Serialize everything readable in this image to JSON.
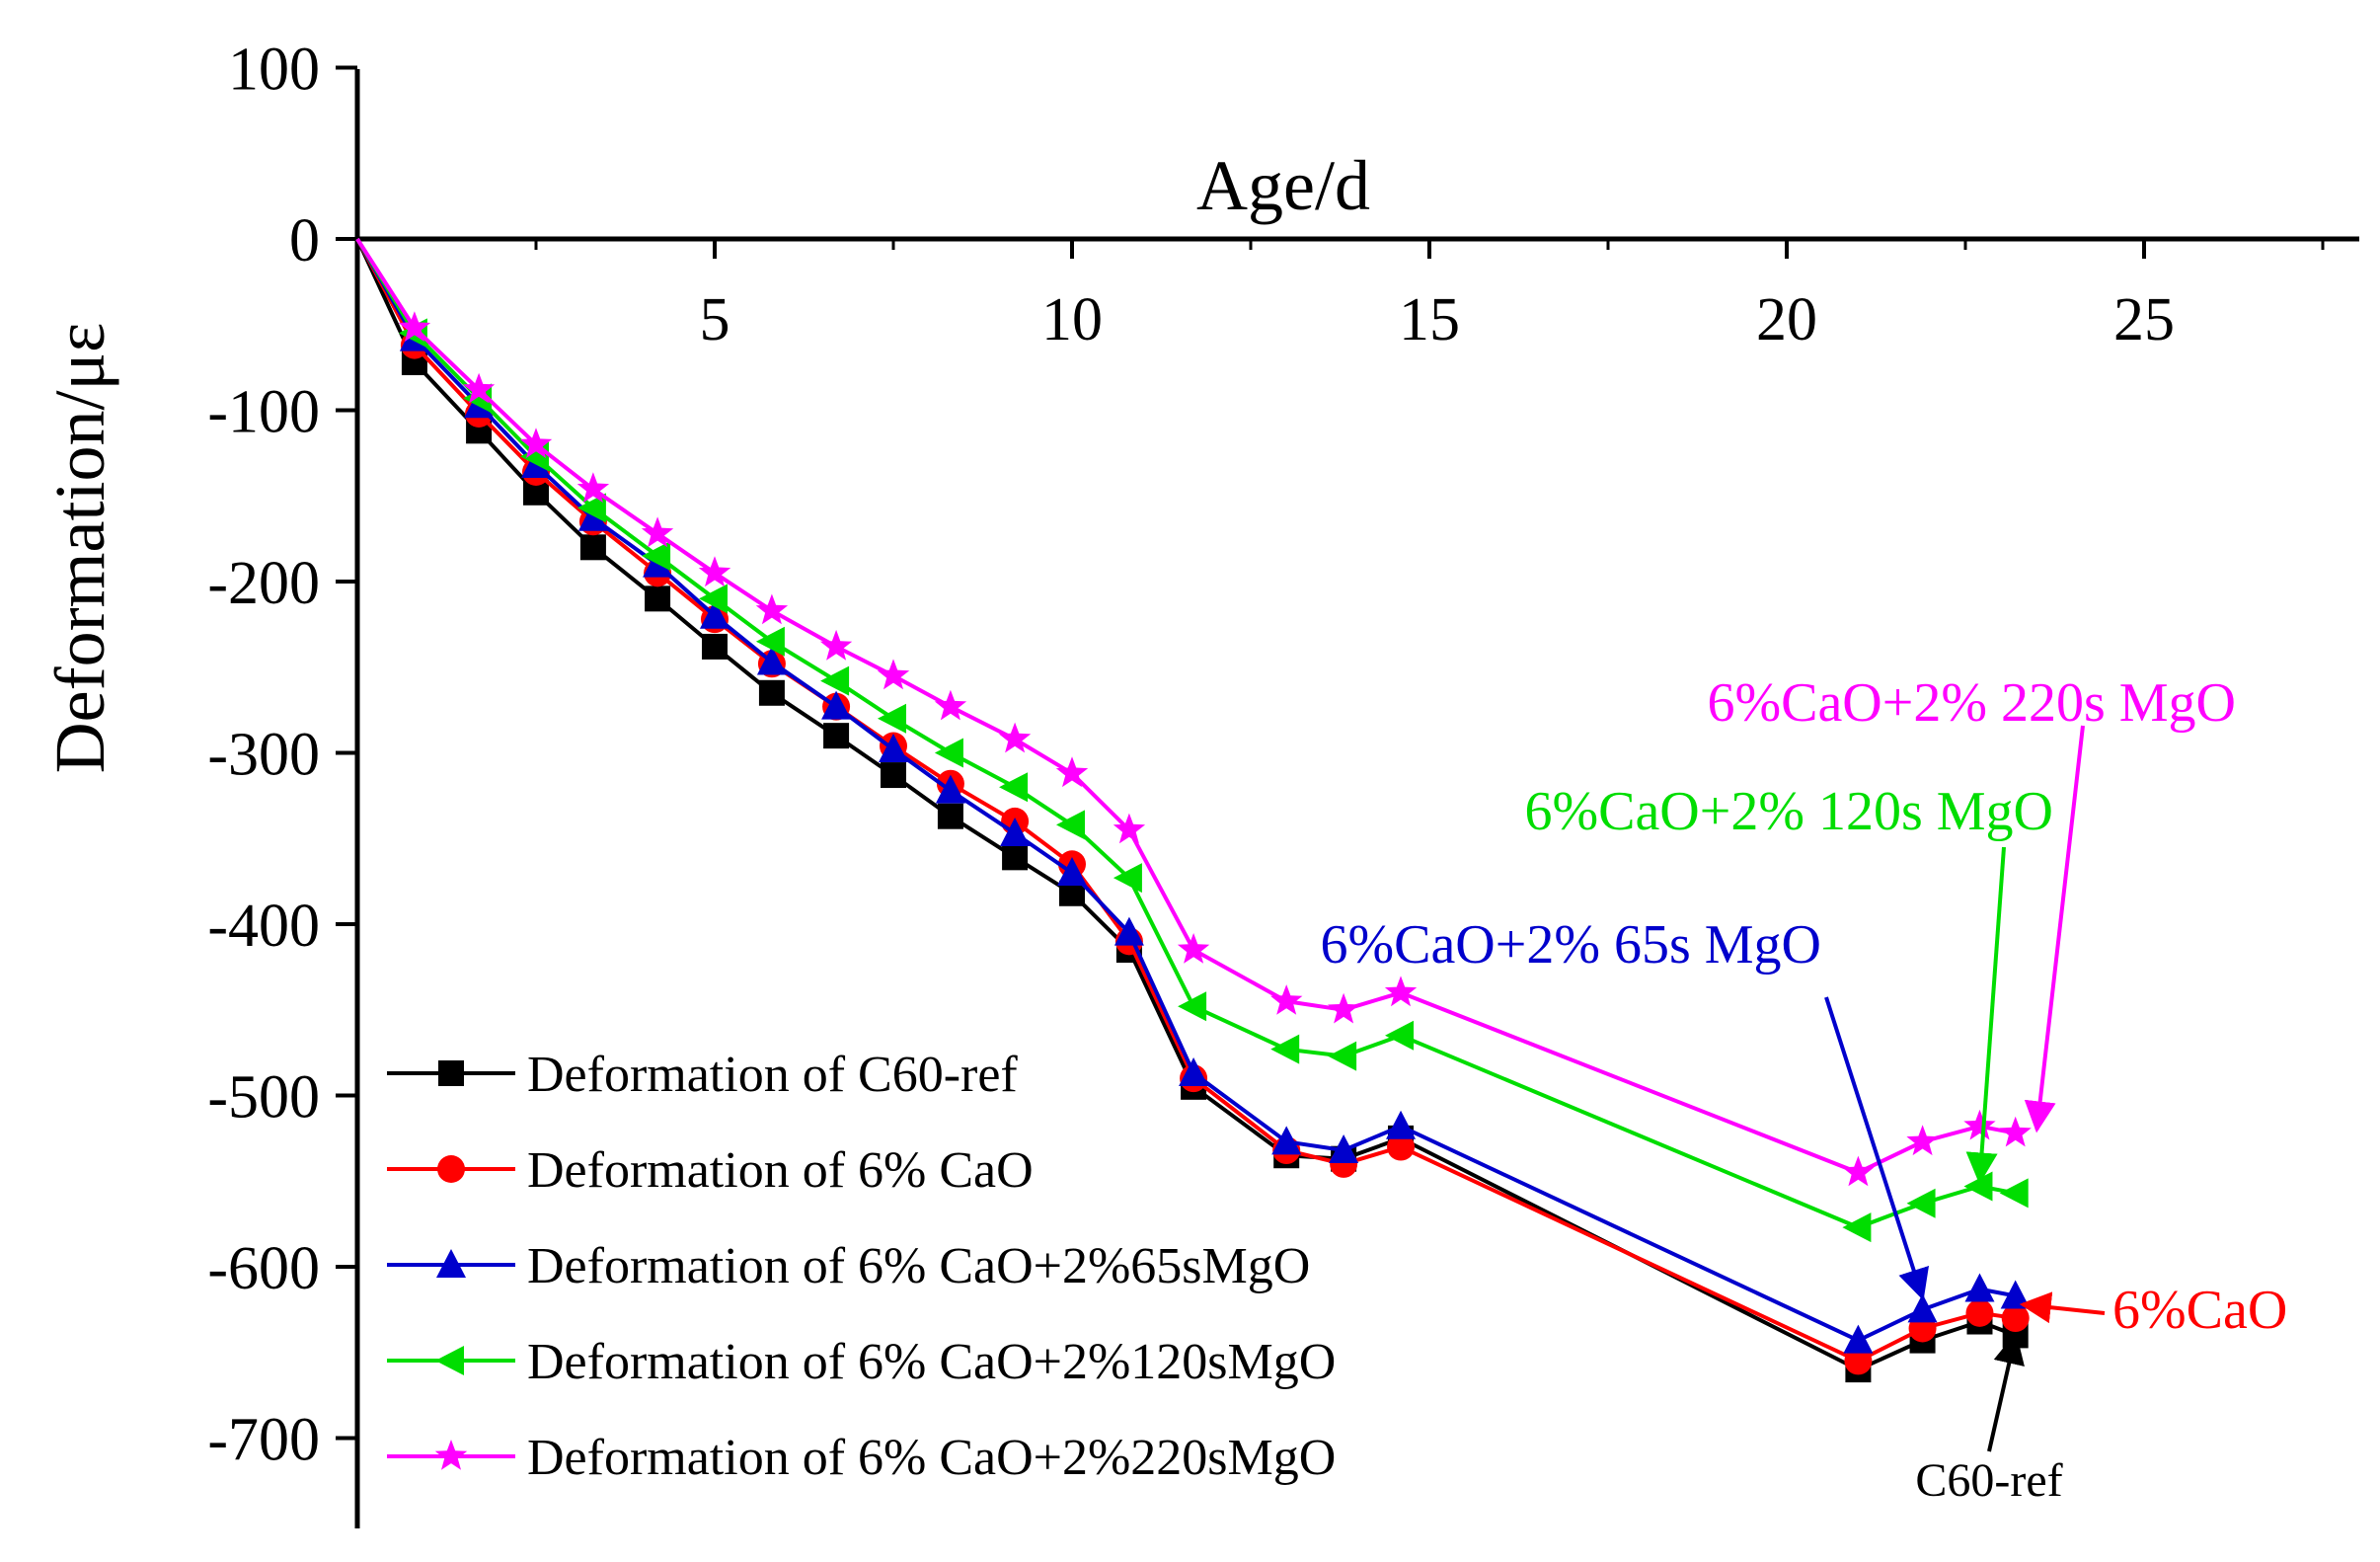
{
  "chart_data": {
    "type": "line",
    "title": "",
    "xlabel": "Age/d",
    "ylabel": "Deformation/με",
    "xlim": [
      0,
      28
    ],
    "ylim": [
      -750,
      100
    ],
    "x_ticks": [
      5,
      10,
      15,
      20,
      25
    ],
    "y_ticks": [
      100,
      0,
      -100,
      -200,
      -300,
      -400,
      -500,
      -600,
      -700
    ],
    "grid": false,
    "legend_position": "bottom-left",
    "series": [
      {
        "name": "Deformation of C60-ref",
        "color": "#000000",
        "marker": "square",
        "x": [
          0,
          0.8,
          1.7,
          2.5,
          3.3,
          4.2,
          5.0,
          5.8,
          6.7,
          7.5,
          8.3,
          9.2,
          10.0,
          10.8,
          11.7,
          13.0,
          13.8,
          14.6,
          21.0,
          21.9,
          22.7,
          23.2
        ],
        "y": [
          0,
          -72,
          -112,
          -148,
          -180,
          -210,
          -238,
          -265,
          -290,
          -313,
          -337,
          -361,
          -382,
          -415,
          -495,
          -535,
          -537,
          -525,
          -660,
          -643,
          -632,
          -640
        ]
      },
      {
        "name": "Deformation of 6% CaO",
        "color": "#ff0000",
        "marker": "circle",
        "x": [
          0,
          0.8,
          1.7,
          2.5,
          3.3,
          4.2,
          5.0,
          5.8,
          6.7,
          7.5,
          8.3,
          9.2,
          10.0,
          10.8,
          11.7,
          13.0,
          13.8,
          14.6,
          21.0,
          21.9,
          22.7,
          23.2
        ],
        "y": [
          0,
          -62,
          -102,
          -136,
          -165,
          -195,
          -222,
          -248,
          -273,
          -296,
          -318,
          -340,
          -365,
          -410,
          -490,
          -532,
          -540,
          -530,
          -655,
          -636,
          -627,
          -630
        ]
      },
      {
        "name": "Deformation of 6% CaO+2%65sMgO",
        "color": "#0000cc",
        "marker": "triangle",
        "x": [
          0,
          0.8,
          1.7,
          2.5,
          3.3,
          4.2,
          5.0,
          5.8,
          6.7,
          7.5,
          8.3,
          9.2,
          10.0,
          10.8,
          11.7,
          13.0,
          13.8,
          14.6,
          21.0,
          21.9,
          22.7,
          23.2
        ],
        "y": [
          0,
          -58,
          -97,
          -132,
          -163,
          -190,
          -220,
          -247,
          -273,
          -298,
          -322,
          -347,
          -370,
          -405,
          -487,
          -527,
          -532,
          -518,
          -643,
          -625,
          -613,
          -617
        ]
      },
      {
        "name": "Deformation of 6% CaO+2%120sMgO",
        "color": "#00dd00",
        "marker": "triangle-left",
        "x": [
          0,
          0.8,
          1.7,
          2.5,
          3.3,
          4.2,
          5.0,
          5.8,
          6.7,
          7.5,
          8.3,
          9.2,
          10.0,
          10.8,
          11.7,
          13.0,
          13.8,
          14.6,
          21.0,
          21.9,
          22.7,
          23.2
        ],
        "y": [
          0,
          -55,
          -93,
          -127,
          -157,
          -185,
          -210,
          -235,
          -258,
          -280,
          -300,
          -320,
          -342,
          -373,
          -448,
          -473,
          -477,
          -465,
          -577,
          -563,
          -553,
          -557
        ]
      },
      {
        "name": "Deformation of 6% CaO+2%220sMgO",
        "color": "#ff00ff",
        "marker": "star",
        "x": [
          0,
          0.8,
          1.7,
          2.5,
          3.3,
          4.2,
          5.0,
          5.8,
          6.7,
          7.5,
          8.3,
          9.2,
          10.0,
          10.8,
          11.7,
          13.0,
          13.8,
          14.6,
          21.0,
          21.9,
          22.7,
          23.2
        ],
        "y": [
          0,
          -52,
          -88,
          -120,
          -146,
          -172,
          -195,
          -217,
          -238,
          -255,
          -273,
          -292,
          -312,
          -345,
          -415,
          -445,
          -450,
          -440,
          -545,
          -527,
          -518,
          -522
        ]
      }
    ],
    "annotations": [
      {
        "text": "6%CaO+2% 220s MgO",
        "color": "#ff00ff",
        "arrow_to": {
          "x": 23.5,
          "y": -520
        }
      },
      {
        "text": "6%CaO+2% 120s MgO",
        "color": "#00dd00",
        "arrow_to": {
          "x": 22.7,
          "y": -550
        }
      },
      {
        "text": "6%CaO+2% 65s MgO",
        "color": "#0000cc",
        "arrow_to": {
          "x": 21.9,
          "y": -618
        }
      },
      {
        "text": "6%CaO",
        "color": "#ff0000",
        "arrow_to": {
          "x": 23.3,
          "y": -622
        }
      },
      {
        "text": "C60-ref",
        "color": "#000000",
        "arrow_to": {
          "x": 23.2,
          "y": -640
        }
      }
    ]
  }
}
